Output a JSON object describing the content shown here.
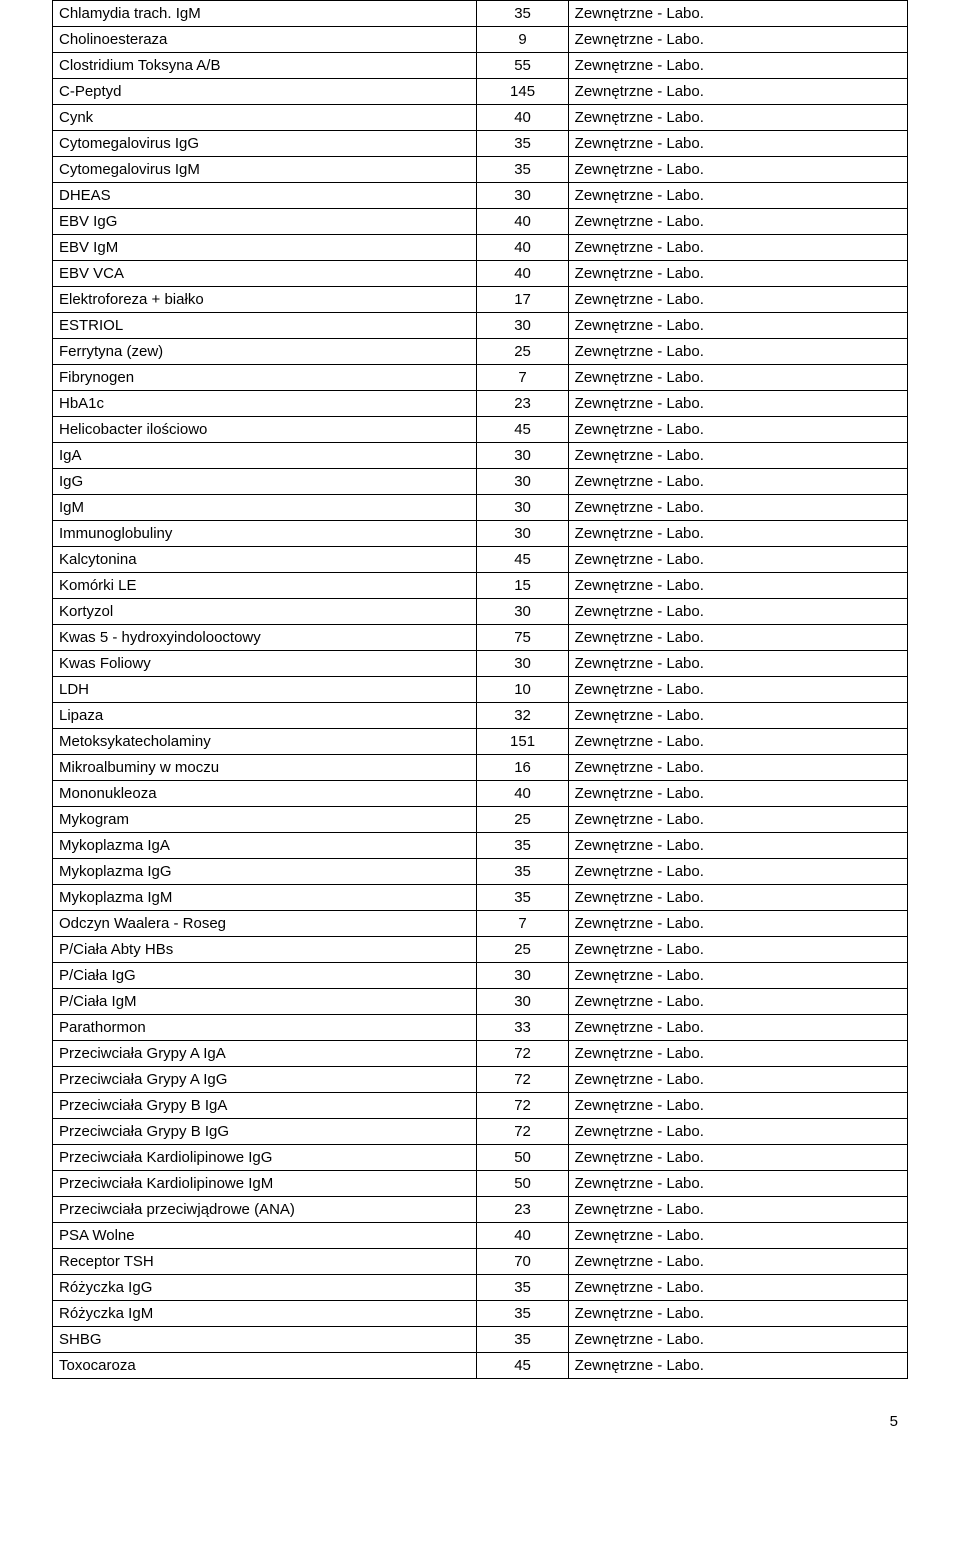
{
  "source_label": "Zewnętrzne - Labo.",
  "page_number": "5",
  "rows": [
    {
      "name": "Chlamydia trach. IgM",
      "value": "35"
    },
    {
      "name": "Cholinoesteraza",
      "value": "9"
    },
    {
      "name": "Clostridium Toksyna A/B",
      "value": "55"
    },
    {
      "name": "C-Peptyd",
      "value": "145"
    },
    {
      "name": "Cynk",
      "value": "40"
    },
    {
      "name": "Cytomegalovirus IgG",
      "value": "35"
    },
    {
      "name": "Cytomegalovirus IgM",
      "value": "35"
    },
    {
      "name": "DHEAS",
      "value": "30"
    },
    {
      "name": "EBV IgG",
      "value": "40"
    },
    {
      "name": "EBV IgM",
      "value": "40"
    },
    {
      "name": "EBV VCA",
      "value": "40"
    },
    {
      "name": "Elektroforeza + białko",
      "value": "17"
    },
    {
      "name": "ESTRIOL",
      "value": "30"
    },
    {
      "name": "Ferrytyna (zew)",
      "value": "25"
    },
    {
      "name": "Fibrynogen",
      "value": "7"
    },
    {
      "name": "HbA1c",
      "value": "23"
    },
    {
      "name": "Helicobacter ilościowo",
      "value": "45"
    },
    {
      "name": "IgA",
      "value": "30"
    },
    {
      "name": "IgG",
      "value": "30"
    },
    {
      "name": "IgM",
      "value": "30"
    },
    {
      "name": "Immunoglobuliny",
      "value": "30"
    },
    {
      "name": "Kalcytonina",
      "value": "45"
    },
    {
      "name": "Komórki LE",
      "value": "15"
    },
    {
      "name": "Kortyzol",
      "value": "30"
    },
    {
      "name": "Kwas 5 - hydroxyindolooctowy",
      "value": "75"
    },
    {
      "name": "Kwas Foliowy",
      "value": "30"
    },
    {
      "name": "LDH",
      "value": "10"
    },
    {
      "name": "Lipaza",
      "value": "32"
    },
    {
      "name": "Metoksykatecholaminy",
      "value": "151"
    },
    {
      "name": "Mikroalbuminy w moczu",
      "value": "16"
    },
    {
      "name": "Mononukleoza",
      "value": "40"
    },
    {
      "name": "Mykogram",
      "value": "25"
    },
    {
      "name": "Mykoplazma IgA",
      "value": "35"
    },
    {
      "name": "Mykoplazma IgG",
      "value": "35"
    },
    {
      "name": "Mykoplazma IgM",
      "value": "35"
    },
    {
      "name": "Odczyn Waalera - Roseg",
      "value": "7"
    },
    {
      "name": "P/Ciała Abty HBs",
      "value": "25"
    },
    {
      "name": "P/Ciała IgG",
      "value": "30"
    },
    {
      "name": "P/Ciała IgM",
      "value": "30"
    },
    {
      "name": "Parathormon",
      "value": "33"
    },
    {
      "name": "Przeciwciała Grypy A IgA",
      "value": "72"
    },
    {
      "name": "Przeciwciała Grypy A IgG",
      "value": "72"
    },
    {
      "name": "Przeciwciała Grypy B IgA",
      "value": "72"
    },
    {
      "name": "Przeciwciała Grypy B IgG",
      "value": "72"
    },
    {
      "name": "Przeciwciała Kardiolipinowe IgG",
      "value": "50"
    },
    {
      "name": "Przeciwciała Kardiolipinowe IgM",
      "value": "50"
    },
    {
      "name": "Przeciwciała przeciwjądrowe (ANA)",
      "value": "23"
    },
    {
      "name": "PSA Wolne",
      "value": "40"
    },
    {
      "name": "Receptor TSH",
      "value": "70"
    },
    {
      "name": "Różyczka IgG",
      "value": "35"
    },
    {
      "name": "Różyczka IgM",
      "value": "35"
    },
    {
      "name": "SHBG",
      "value": "35"
    },
    {
      "name": "Toxocaroza",
      "value": "45"
    }
  ]
}
